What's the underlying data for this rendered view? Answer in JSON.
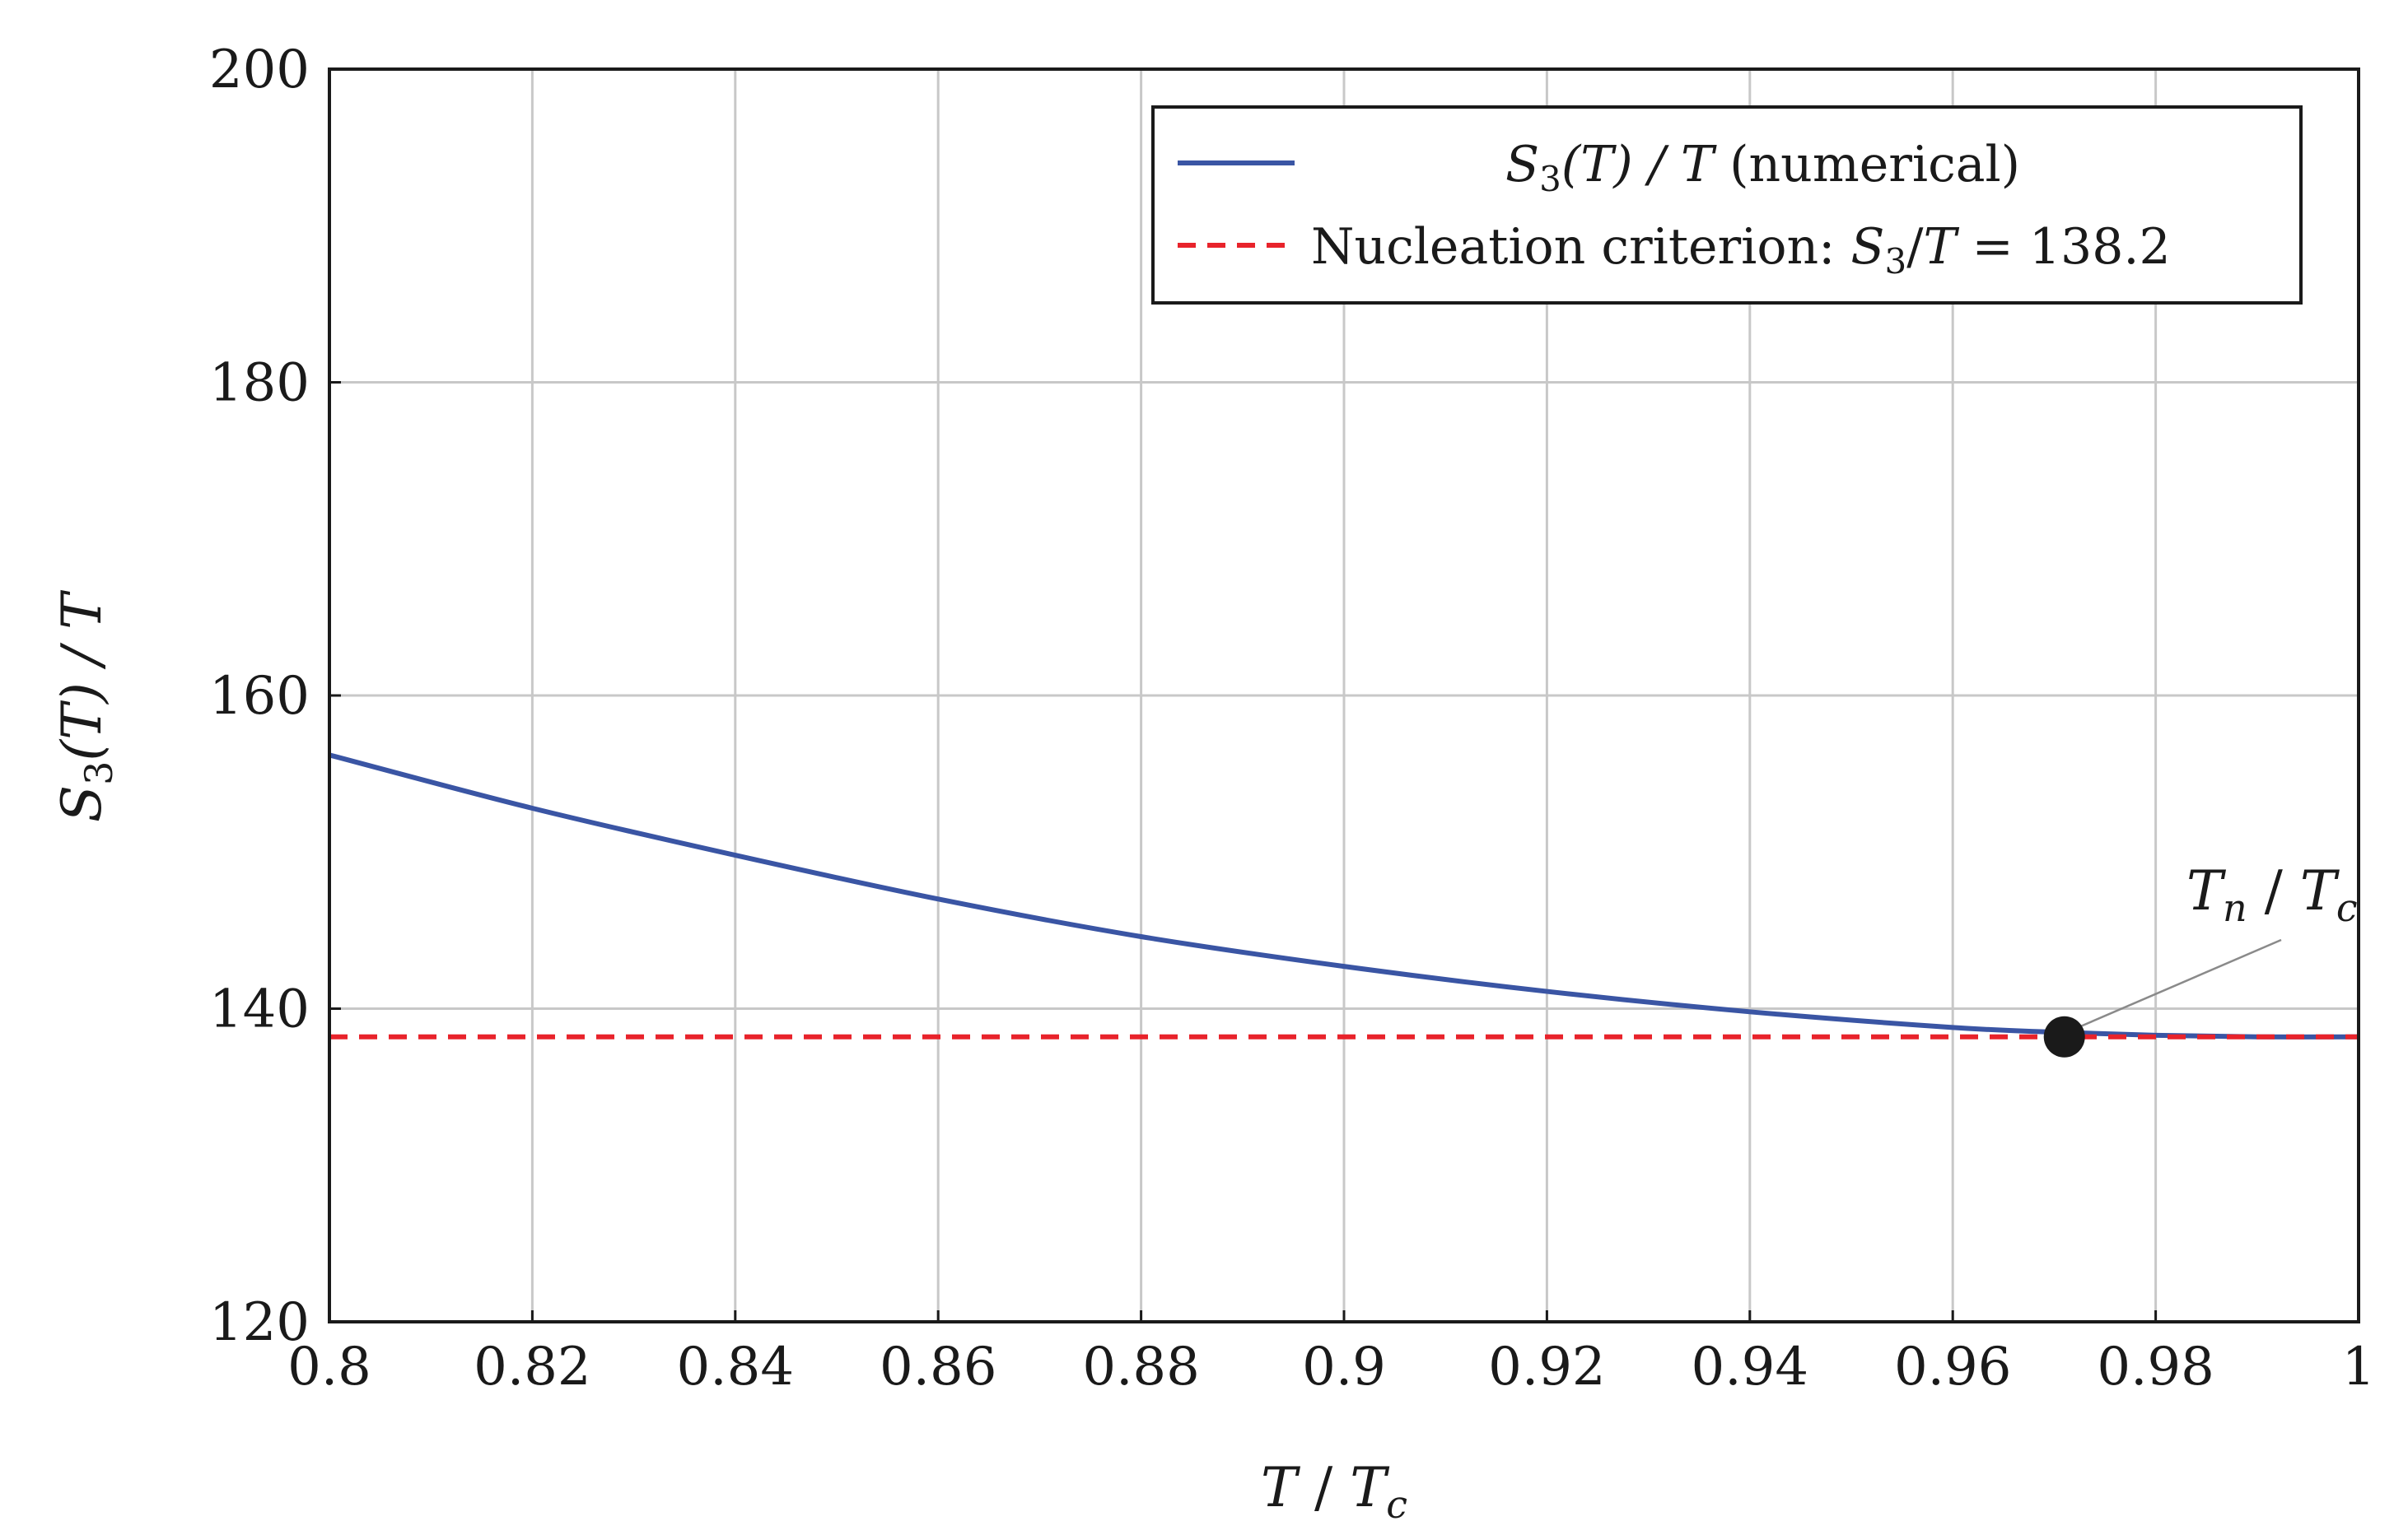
{
  "chart_data": {
    "type": "line",
    "xlabel": "T / Tc",
    "ylabel": "S3(T) / T",
    "xlim": [
      0.8,
      1.0
    ],
    "ylim": [
      120,
      200
    ],
    "x_ticks": [
      0.8,
      0.82,
      0.84,
      0.86,
      0.88,
      0.9,
      0.92,
      0.94,
      0.96,
      0.98,
      1.0
    ],
    "x_tick_labels": [
      "0.8",
      "0.82",
      "0.84",
      "0.86",
      "0.88",
      "0.9",
      "0.92",
      "0.94",
      "0.96",
      "0.98",
      "1"
    ],
    "y_ticks": [
      120,
      140,
      160,
      180,
      200
    ],
    "y_tick_labels": [
      "120",
      "140",
      "160",
      "180",
      "200"
    ],
    "grid": true,
    "legend_position": "top-right",
    "series": [
      {
        "name": "S3(T)/T (numerical)",
        "color": "#3a55a4",
        "style": "solid",
        "x": [
          0.8,
          0.82,
          0.84,
          0.86,
          0.88,
          0.9,
          0.92,
          0.94,
          0.96,
          0.97,
          0.98,
          0.99,
          1.0
        ],
        "y": [
          156.2,
          152.8,
          149.8,
          147.0,
          144.6,
          142.7,
          141.1,
          139.8,
          138.8,
          138.5,
          138.3,
          138.2,
          138.2
        ]
      },
      {
        "name": "Nucleation criterion: S3/T = 138.2",
        "color": "#e8232b",
        "style": "dashed",
        "x": [
          0.8,
          1.0
        ],
        "y": [
          138.2,
          138.2
        ]
      }
    ],
    "annotations": [
      {
        "label": "Tn / Tc",
        "x": 0.971,
        "y": 138.2,
        "marker_color": "#1a1a1a"
      }
    ]
  },
  "legend": {
    "entry_1": {
      "label_a": "S",
      "label_sub": "3",
      "label_b": "(T) / T",
      "label_c": " (numerical)"
    },
    "entry_2": {
      "label_a": "Nucleation criterion: ",
      "label_b": "S",
      "label_sub": "3",
      "label_c": "/",
      "label_d": "T",
      "label_e": " = 138.2"
    }
  },
  "axis_text": {
    "x_main": "T",
    "x_sep": " / ",
    "x_main2": "T",
    "x_sub": "c",
    "y_main": "S",
    "y_sub": "3",
    "y_rest": "(T) / T"
  },
  "annotation_text": {
    "main": "T",
    "sub": "n",
    "sep": " / ",
    "main2": "T",
    "sub2": "c"
  }
}
